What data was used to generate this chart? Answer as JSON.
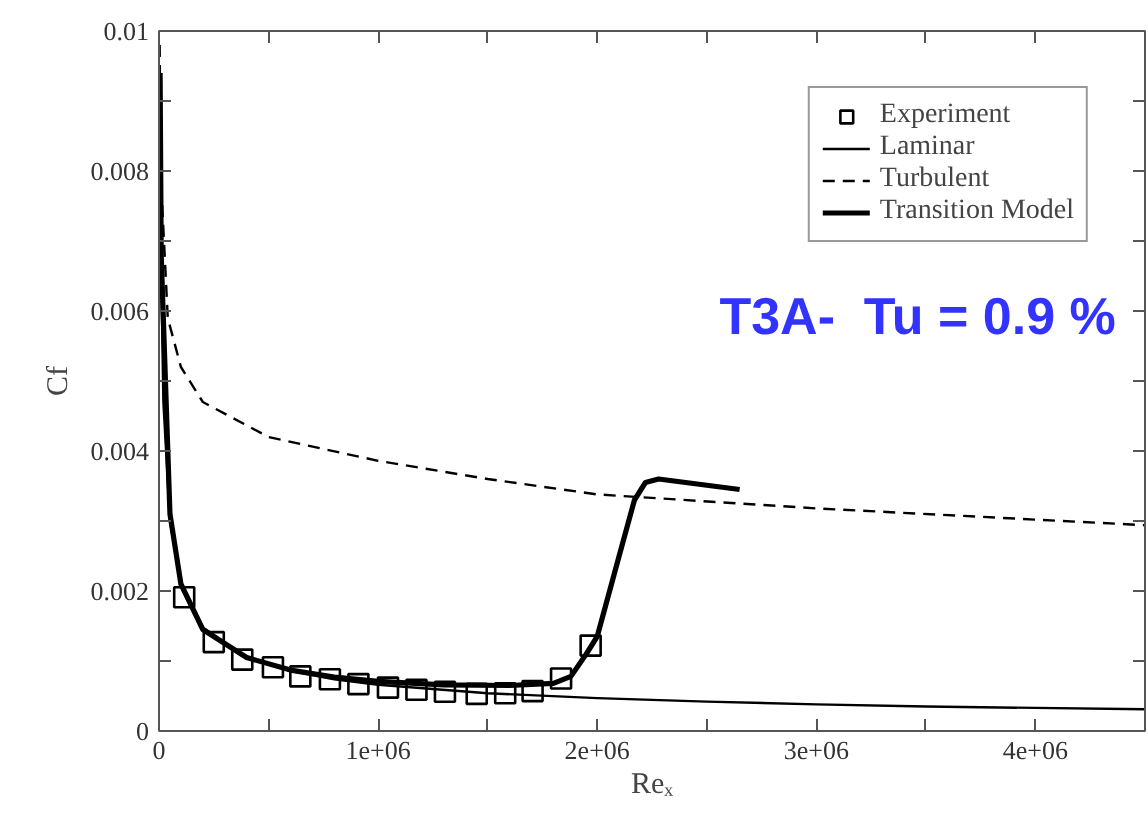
{
  "chart_data": {
    "type": "line",
    "xlabel": "Reₓ",
    "ylabel": "Cf",
    "xlim": [
      0,
      4500000
    ],
    "ylim": [
      0,
      0.01
    ],
    "xticks": [
      {
        "value": 0,
        "label": "0"
      },
      {
        "value": 500000,
        "label": null
      },
      {
        "value": 1000000,
        "label": "1e+06"
      },
      {
        "value": 1500000,
        "label": null
      },
      {
        "value": 2000000,
        "label": "2e+06"
      },
      {
        "value": 2500000,
        "label": null
      },
      {
        "value": 3000000,
        "label": "3e+06"
      },
      {
        "value": 3500000,
        "label": null
      },
      {
        "value": 4000000,
        "label": "4e+06"
      }
    ],
    "yticks": [
      0,
      {
        "value": 0.001,
        "label": null
      },
      0.002,
      {
        "value": 0.003,
        "label": null
      },
      0.004,
      {
        "value": 0.005,
        "label": null
      },
      0.006,
      {
        "value": 0.007,
        "label": null
      },
      0.008,
      {
        "value": 0.009,
        "label": null
      },
      0.01
    ],
    "grid": false,
    "legend": "top right",
    "annotations": [
      "T3A-   Tu = 0.9 %"
    ],
    "series": [
      {
        "name": "Experiment",
        "type": "scatter",
        "marker": "square",
        "color": "#000000",
        "x": [
          115000,
          250000,
          380000,
          520000,
          645000,
          780000,
          910000,
          1045000,
          1175000,
          1305000,
          1450000,
          1580000,
          1705000,
          1835000,
          1970000
        ],
        "values": [
          0.00191,
          0.00127,
          0.00102,
          0.00091,
          0.00078,
          0.00074,
          0.00067,
          0.00062,
          0.00059,
          0.00056,
          0.00053,
          0.00054,
          0.00057,
          0.00075,
          0.00122
        ]
      },
      {
        "name": "Laminar",
        "line_style": "solid",
        "color": "#000000",
        "x": [
          5000,
          10000,
          20000,
          50000,
          100000,
          200000,
          400000,
          600000,
          800000,
          1000000,
          1500000,
          2000000,
          2500000,
          3000000,
          3500000,
          4000000,
          4500000
        ],
        "values": [
          0.0094,
          0.0066,
          0.0047,
          0.003,
          0.0021,
          0.00148,
          0.00105,
          0.00086,
          0.00074,
          0.00066,
          0.00054,
          0.00047,
          0.00042,
          0.00038,
          0.00035,
          0.00033,
          0.00031
        ]
      },
      {
        "name": "Turbulent",
        "line_style": "dashed",
        "color": "#000000",
        "x": [
          3000,
          7000,
          40000,
          100000,
          200000,
          500000,
          1000000,
          1500000,
          2000000,
          3000000,
          4000000,
          4500000
        ],
        "values": [
          0.0098,
          0.008,
          0.0059,
          0.0052,
          0.0047,
          0.0042,
          0.00386,
          0.0036,
          0.00338,
          0.00318,
          0.00302,
          0.00294
        ]
      },
      {
        "name": "Transition Model",
        "line_style": "solid",
        "color": "#000000",
        "x": [
          5000,
          10000,
          50000,
          100000,
          200000,
          400000,
          600000,
          800000,
          1000000,
          1300000,
          1600000,
          1800000,
          1880000,
          1950000,
          2000000,
          2100000,
          2170000,
          2220000,
          2280000,
          2650000
        ],
        "values": [
          0.0094,
          0.0068,
          0.0031,
          0.0021,
          0.00145,
          0.00105,
          0.00087,
          0.00077,
          0.00071,
          0.00066,
          0.00065,
          0.00068,
          0.00078,
          0.0011,
          0.00135,
          0.0025,
          0.0033,
          0.00355,
          0.0036,
          0.00345
        ]
      }
    ]
  }
}
